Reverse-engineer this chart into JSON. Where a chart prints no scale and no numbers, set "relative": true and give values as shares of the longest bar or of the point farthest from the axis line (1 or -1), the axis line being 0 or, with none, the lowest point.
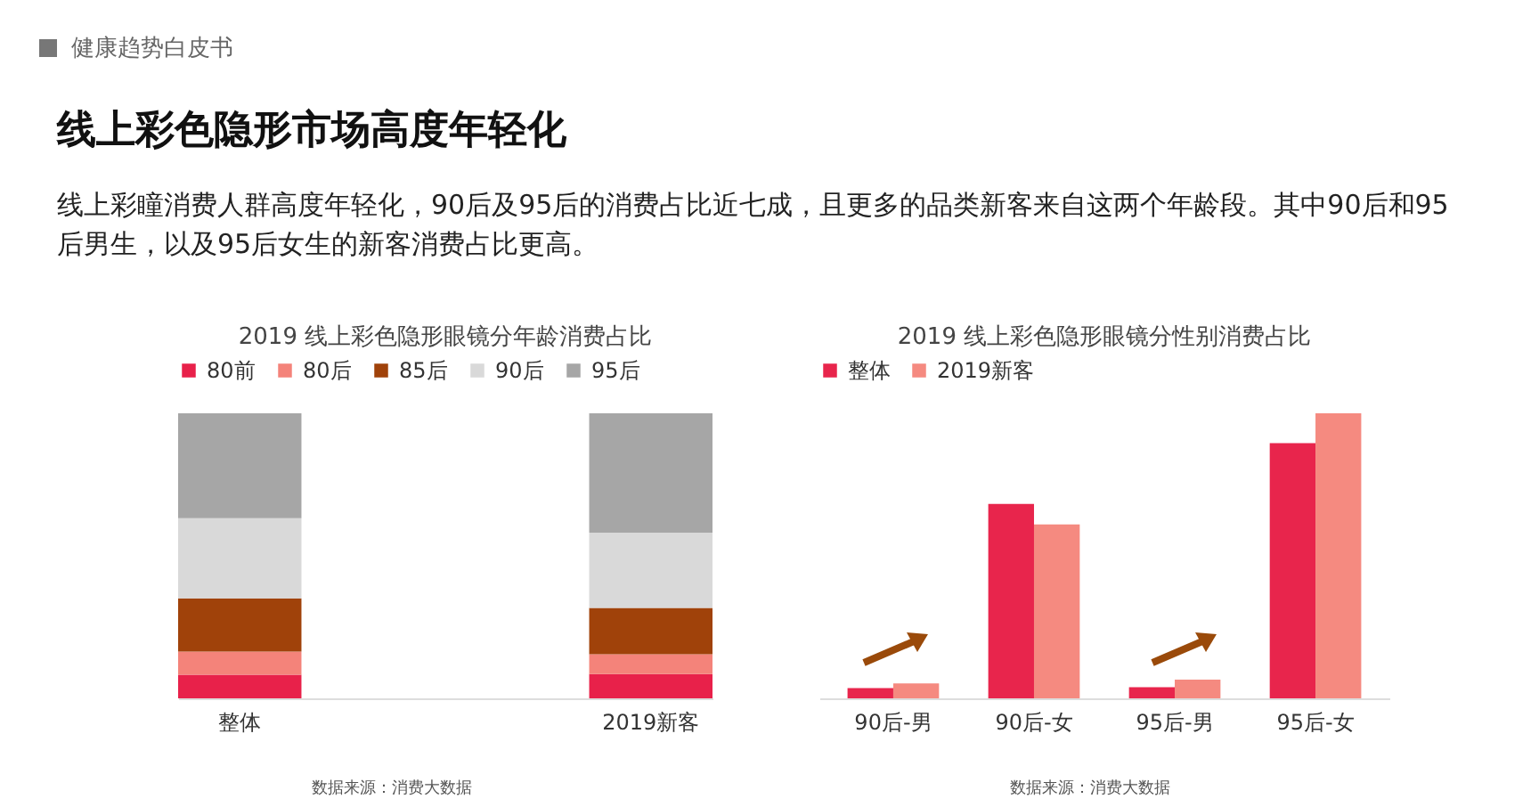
{
  "chart_data": [
    {
      "type": "other",
      "title": "线上彩色隐形市场高度年轻化",
      "subtitle": "线上彩瞳消费人群高度年轻化，90后及95后的消费占比近七成，且更多的品类新客来自这两个年龄段。其中90后和95后男生，以及95后女生的新客消费占比更高。",
      "annotations": [
        "健康趋势白皮书"
      ]
    },
    {
      "type": "bar",
      "title": "2019 线上彩色隐形眼镜分年龄消费占比",
      "relative": true,
      "stacked": true,
      "legend": "top",
      "categories": [
        "整体",
        "2019新客"
      ],
      "series": [
        {
          "name": "80前",
          "color": "#e8214a",
          "values": [
            0.083,
            0.085
          ]
        },
        {
          "name": "80后",
          "color": "#f4837a",
          "values": [
            0.081,
            0.07
          ]
        },
        {
          "name": "85后",
          "color": "#a0420a",
          "values": [
            0.187,
            0.162
          ]
        },
        {
          "name": "90后",
          "color": "#d9d9d9",
          "values": [
            0.281,
            0.264
          ]
        },
        {
          "name": "95后",
          "color": "#a6a6a6",
          "values": [
            0.368,
            0.419
          ]
        }
      ],
      "annotations": [
        "数据来源：消费大数据"
      ]
    },
    {
      "type": "bar",
      "title": "2019 线上彩色隐形眼镜分性别消费占比",
      "relative": true,
      "legend": "top",
      "categories": [
        "90后-男",
        "90后-女",
        "95后-男",
        "95后-女"
      ],
      "series": [
        {
          "name": "整体",
          "color": "#e8254c",
          "values": [
            0.036,
            0.682,
            0.039,
            0.895
          ]
        },
        {
          "name": "2019新客",
          "color": "#f58a80",
          "values": [
            0.052,
            0.61,
            0.066,
            1
          ]
        }
      ],
      "annotations": [
        "数据来源：消费大数据"
      ]
    }
  ]
}
